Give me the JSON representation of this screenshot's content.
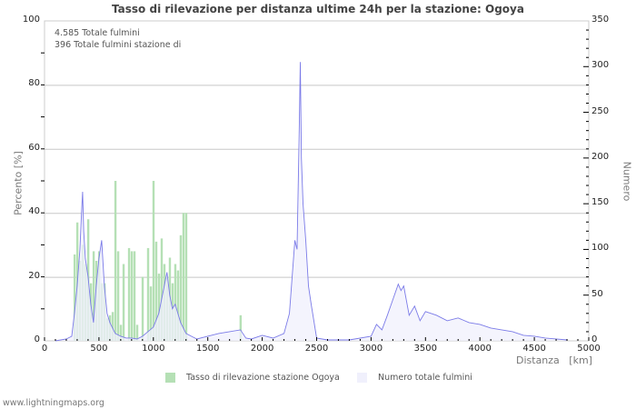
{
  "chart_data": {
    "type": "bar+area",
    "title": "Tasso di rilevazione per distanza ultime 24h per la stazione: Ogoya",
    "info_lines": [
      "4.585 Totale fulmini",
      "396 Totale fulmini stazione di"
    ],
    "xlabel": "Distanza   [km]",
    "ylabel_left": "Percento   [%]",
    "ylabel_right": "Numero",
    "xlim": [
      0,
      5000
    ],
    "ylim_left": [
      0,
      100
    ],
    "ylim_right": [
      0,
      350
    ],
    "x_ticks": [
      0,
      500,
      1000,
      1500,
      2000,
      2500,
      3000,
      3500,
      4000,
      4500,
      5000
    ],
    "y_ticks_left": [
      0,
      20,
      40,
      60,
      80,
      100
    ],
    "y_ticks_right": [
      0,
      50,
      100,
      150,
      200,
      250,
      300,
      350
    ],
    "grid": true,
    "legend_position": "bottom",
    "series": [
      {
        "name": "Tasso di rilevazione stazione Ogoya",
        "type": "bar",
        "color": "#b5e0b5",
        "axis": "left",
        "x": [
          275,
          300,
          325,
          350,
          375,
          400,
          425,
          450,
          475,
          500,
          525,
          550,
          575,
          600,
          625,
          650,
          675,
          700,
          725,
          775,
          800,
          825,
          850,
          900,
          950,
          975,
          1000,
          1025,
          1050,
          1075,
          1100,
          1125,
          1150,
          1175,
          1200,
          1225,
          1250,
          1275,
          1300,
          1800
        ],
        "values": [
          27,
          37,
          25,
          30,
          24,
          38,
          18,
          28,
          25,
          28,
          18,
          18,
          7,
          8,
          9,
          50,
          28,
          5,
          24,
          29,
          28,
          28,
          5,
          20,
          29,
          17,
          50,
          31,
          21,
          32,
          24,
          20,
          26,
          18,
          24,
          22,
          33,
          40,
          40,
          8
        ]
      },
      {
        "name": "Numero totale fulmini",
        "type": "area",
        "color": "#f0f0fc",
        "line_color": "#7b7be8",
        "axis": "right",
        "x": [
          100,
          200,
          250,
          275,
          300,
          325,
          340,
          350,
          360,
          375,
          400,
          425,
          450,
          475,
          500,
          525,
          540,
          550,
          575,
          600,
          650,
          700,
          750,
          800,
          850,
          900,
          950,
          1000,
          1050,
          1100,
          1125,
          1150,
          1175,
          1200,
          1250,
          1300,
          1350,
          1400,
          1500,
          1600,
          1700,
          1800,
          1850,
          1900,
          2000,
          2100,
          2200,
          2250,
          2275,
          2300,
          2320,
          2340,
          2350,
          2360,
          2375,
          2400,
          2425,
          2450,
          2500,
          2600,
          2800,
          3000,
          3050,
          3100,
          3150,
          3200,
          3250,
          3275,
          3300,
          3350,
          3400,
          3450,
          3500,
          3600,
          3700,
          3800,
          3900,
          4000,
          4100,
          4200,
          4300,
          4400,
          4500,
          4600,
          4700,
          4800
        ],
        "values": [
          0,
          2,
          5,
          30,
          60,
          100,
          140,
          163,
          120,
          90,
          70,
          40,
          20,
          60,
          90,
          110,
          80,
          60,
          30,
          20,
          8,
          5,
          3,
          3,
          2,
          5,
          10,
          15,
          30,
          60,
          75,
          50,
          35,
          40,
          20,
          8,
          5,
          2,
          5,
          8,
          10,
          12,
          3,
          2,
          6,
          3,
          8,
          30,
          70,
          110,
          100,
          230,
          305,
          200,
          150,
          110,
          60,
          40,
          3,
          1,
          1,
          5,
          18,
          12,
          28,
          45,
          62,
          55,
          60,
          28,
          38,
          22,
          32,
          28,
          22,
          25,
          20,
          18,
          14,
          12,
          10,
          6,
          5,
          3,
          2,
          1
        ]
      }
    ]
  },
  "page": {
    "footer": "www.lightningmaps.org"
  }
}
